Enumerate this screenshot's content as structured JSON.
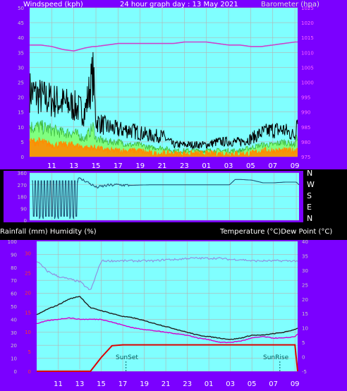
{
  "colors": {
    "frame": "#7b00ff",
    "plot": "#80ffff",
    "grid": "#b3b3b3",
    "white_text": "#ffffff",
    "left_axis_text": "#c8c8c8",
    "baro_axis_text": "#ff66ff",
    "wind_gust": "#000000",
    "wind_avg": "#80ff80",
    "wind_min": "#ff8c00",
    "baro_line": "#cc44cc",
    "winddir_line": "#1f5577",
    "humidity_line": "#9090e0",
    "temp_line": "#202020",
    "dew_line": "#d000d0",
    "rain_line": "#dd0000",
    "rain_axis_text": "#ff3333",
    "marker_line": "#006060"
  },
  "top": {
    "left_label": "Windspeed (kph)",
    "title": "24 hour graph day : 13 May 2021",
    "right_label": "Barometer (hpa)"
  },
  "middle": {
    "compass": [
      "N",
      "W",
      "S",
      "E",
      "N"
    ]
  },
  "bottom": {
    "left_label": "Rainfall (mm)  Humidity (%)",
    "right_label": "Temperature (°C)Dew Point (°C)",
    "sunset_label": "SunSet",
    "sunrise_label": "SunRise"
  },
  "chart_data": [
    {
      "type": "area",
      "title": "24 hour graph day : 13 May 2021",
      "ylabel": "Windspeed (kph)",
      "y2label": "Barometer (hpa)",
      "x_tick_labels": [
        "11",
        "13",
        "15",
        "17",
        "19",
        "21",
        "23",
        "01",
        "03",
        "05",
        "07",
        "09"
      ],
      "y_ticks": [
        0,
        5,
        10,
        15,
        20,
        25,
        30,
        35,
        40,
        45,
        50
      ],
      "y2_ticks": [
        975,
        980,
        985,
        990,
        995,
        1000,
        1005,
        1010,
        1015,
        1020,
        1025
      ],
      "ylim": [
        0,
        50
      ],
      "y2lim": [
        975,
        1025
      ],
      "x": [
        "09:00",
        "10:00",
        "11:00",
        "12:00",
        "13:00",
        "14:00",
        "14:45",
        "15:00",
        "16:00",
        "17:00",
        "18:00",
        "19:00",
        "20:00",
        "21:00",
        "22:00",
        "23:00",
        "00:00",
        "01:00",
        "02:00",
        "03:00",
        "04:00",
        "05:00",
        "06:00",
        "07:00",
        "08:00",
        "09:00",
        "09:15"
      ],
      "series": [
        {
          "name": "Windspeed",
          "values": [
            22,
            20,
            19,
            18,
            17,
            15,
            28,
            12,
            10,
            9,
            9,
            8,
            7,
            7,
            4,
            4,
            4,
            4,
            5,
            5,
            5,
            6,
            8,
            9,
            9,
            7,
            15
          ]
        },
        {
          "name": "Average",
          "values": [
            10,
            10,
            9,
            8,
            8,
            6,
            10,
            6,
            5,
            5,
            4,
            4,
            3,
            3,
            2,
            2,
            2,
            2,
            2,
            2,
            2,
            3,
            4,
            4,
            5,
            4,
            7
          ]
        },
        {
          "name": "Minimum",
          "values": [
            5,
            5,
            4,
            4,
            4,
            3,
            3,
            3,
            2,
            2,
            2,
            2,
            1,
            1,
            1,
            1,
            1,
            1,
            1,
            1,
            1,
            1,
            2,
            2,
            2,
            2,
            3
          ]
        },
        {
          "name": "Barometer",
          "values": [
            1012.5,
            1012.5,
            1012,
            1011,
            1010.5,
            1011.5,
            1012,
            1012,
            1012.5,
            1013,
            1013,
            1013,
            1013,
            1013,
            1013,
            1013.5,
            1013.5,
            1013.5,
            1013,
            1012.5,
            1012.5,
            1012,
            1012,
            1012.5,
            1013,
            1013.5,
            1013.5
          ]
        }
      ]
    },
    {
      "type": "line",
      "y_ticks": [
        0,
        90,
        180,
        270,
        360
      ],
      "ylim": [
        0,
        360
      ],
      "x": [
        "09:00",
        "09:30",
        "10:00",
        "11:00",
        "12:00",
        "13:00",
        "13:20",
        "14:00",
        "15:00",
        "16:00",
        "17:00",
        "18:00",
        "19:00",
        "20:00",
        "21:00",
        "22:00",
        "23:00",
        "00:00",
        "01:00",
        "02:00",
        "03:00",
        "03:30",
        "04:00",
        "05:00",
        "06:00",
        "07:00",
        "08:00",
        "09:00",
        "09:15"
      ],
      "series": [
        {
          "name": "Wind Direction",
          "values": [
            290,
            40,
            320,
            40,
            310,
            20,
            320,
            300,
            250,
            265,
            270,
            265,
            268,
            270,
            270,
            270,
            270,
            270,
            270,
            270,
            270,
            310,
            310,
            305,
            285,
            285,
            290,
            290,
            270
          ]
        }
      ]
    },
    {
      "type": "line",
      "y_ticks": [
        0,
        10,
        20,
        30,
        40,
        50,
        60,
        70,
        80,
        90,
        100
      ],
      "ylim": [
        0,
        100
      ],
      "y_red_ticks": [
        0,
        5,
        10,
        15,
        20,
        25,
        30
      ],
      "y2_ticks": [
        -5,
        0,
        5,
        10,
        15,
        20,
        25,
        30,
        35,
        40
      ],
      "y2lim": [
        -5,
        40
      ],
      "x_tick_labels": [
        "11",
        "13",
        "15",
        "17",
        "19",
        "21",
        "23",
        "01",
        "03",
        "05",
        "07",
        "09"
      ],
      "x": [
        "09:00",
        "10:00",
        "11:00",
        "12:00",
        "13:00",
        "14:00",
        "15:00",
        "16:00",
        "17:00",
        "18:00",
        "19:00",
        "20:00",
        "21:00",
        "22:00",
        "23:00",
        "00:00",
        "01:00",
        "02:00",
        "03:00",
        "04:00",
        "05:00",
        "06:00",
        "07:00",
        "08:00",
        "09:00",
        "09:15"
      ],
      "series": [
        {
          "name": "Humidity",
          "values": [
            85,
            77,
            73,
            71,
            69,
            62,
            85,
            85,
            85,
            85,
            85,
            85,
            86,
            86,
            87,
            87,
            87,
            87,
            86,
            86,
            85,
            85,
            85,
            85,
            85,
            85
          ]
        },
        {
          "name": "Temperature",
          "values": [
            14.5,
            16.5,
            18,
            20,
            21,
            17,
            16,
            15,
            14,
            13.5,
            12.5,
            11.5,
            10.5,
            9.5,
            8.5,
            7.5,
            7,
            6.5,
            6,
            6.5,
            7.5,
            7.5,
            8,
            8.5,
            9.5,
            10
          ]
        },
        {
          "name": "Dew Point",
          "values": [
            11.5,
            12.5,
            13,
            13.5,
            13,
            13,
            13,
            12,
            11,
            10,
            9.5,
            9,
            8.5,
            8,
            7.5,
            6.5,
            6,
            5,
            5,
            5.5,
            6.5,
            7,
            6.5,
            6.5,
            7,
            8
          ]
        },
        {
          "name": "Rainfall",
          "values": [
            0,
            0,
            0,
            0,
            0,
            0,
            3.5,
            6.5,
            6.7,
            6.7,
            6.7,
            6.7,
            6.7,
            6.7,
            6.7,
            6.7,
            6.7,
            6.7,
            6.7,
            6.7,
            6.7,
            6.7,
            6.7,
            6.7,
            6.7,
            0
          ]
        }
      ]
    }
  ]
}
